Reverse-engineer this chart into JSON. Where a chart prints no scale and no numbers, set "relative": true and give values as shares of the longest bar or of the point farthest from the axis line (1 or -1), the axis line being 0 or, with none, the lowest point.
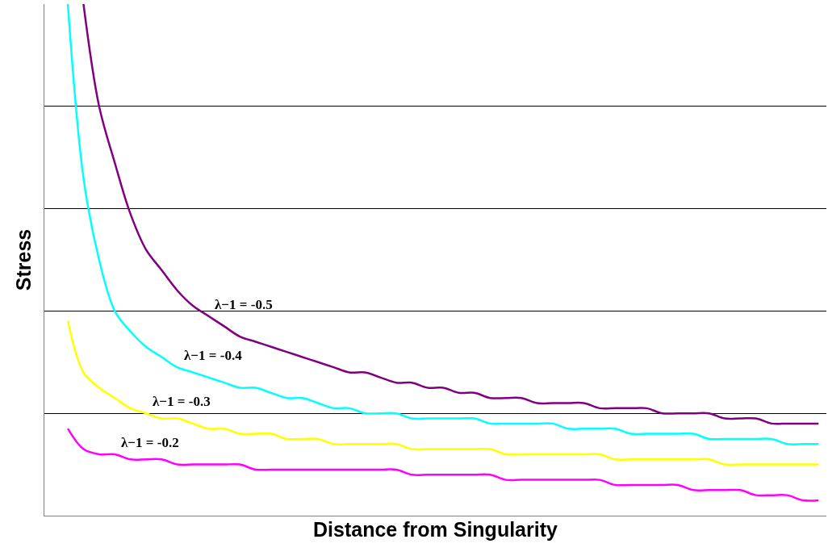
{
  "chart_data": {
    "type": "line",
    "relative": true,
    "xlabel": "Distance from Singularity",
    "ylabel": "Stress",
    "grid": "y",
    "legend": false,
    "marker": "none",
    "line_style": "solid",
    "categories": [
      null,
      null,
      null,
      null,
      null,
      null,
      null,
      null,
      null,
      null,
      null,
      null,
      null,
      null,
      null,
      null,
      null,
      null,
      null,
      null,
      null,
      null,
      null,
      null,
      null,
      null,
      null,
      null,
      null,
      null,
      null,
      null,
      null,
      null,
      null,
      null,
      null,
      null,
      null,
      null,
      null,
      null,
      null,
      null,
      null,
      null,
      null,
      null,
      null,
      null
    ],
    "series": [
      {
        "name": "λ−1 = -0.5",
        "color": "#800080",
        "values": [
          null,
          null,
          1.0,
          0.8,
          0.69,
          0.59,
          0.52,
          0.48,
          0.44,
          0.41,
          0.39,
          0.37,
          0.35,
          0.34,
          0.33,
          0.32,
          0.31,
          0.3,
          0.29,
          0.28,
          0.28,
          0.27,
          0.26,
          0.26,
          0.25,
          0.25,
          0.24,
          0.24,
          0.23,
          0.23,
          0.23,
          0.22,
          0.22,
          0.22,
          0.22,
          0.21,
          0.21,
          0.21,
          0.21,
          0.2,
          0.2,
          0.2,
          0.2,
          0.19,
          0.19,
          0.19,
          0.18,
          0.18,
          0.18,
          0.18
        ]
      },
      {
        "name": "λ−1 = -0.4",
        "color": "#00ffff",
        "values": [
          null,
          1.0,
          0.66,
          0.5,
          0.4,
          0.36,
          0.33,
          0.31,
          0.29,
          0.28,
          0.27,
          0.26,
          0.25,
          0.25,
          0.24,
          0.23,
          0.23,
          0.22,
          0.21,
          0.21,
          0.2,
          0.2,
          0.2,
          0.19,
          0.19,
          0.19,
          0.19,
          0.19,
          0.18,
          0.18,
          0.18,
          0.18,
          0.18,
          0.17,
          0.17,
          0.17,
          0.17,
          0.16,
          0.16,
          0.16,
          0.16,
          0.16,
          0.15,
          0.15,
          0.15,
          0.15,
          0.15,
          0.14,
          0.14,
          0.14
        ]
      },
      {
        "name": "λ−1 = -0.3",
        "color": "#ffff00",
        "values": [
          null,
          0.38,
          0.28,
          0.25,
          0.23,
          0.21,
          0.2,
          0.19,
          0.19,
          0.18,
          0.17,
          0.17,
          0.16,
          0.16,
          0.16,
          0.15,
          0.15,
          0.15,
          0.14,
          0.14,
          0.14,
          0.14,
          0.14,
          0.13,
          0.13,
          0.13,
          0.13,
          0.13,
          0.13,
          0.12,
          0.12,
          0.12,
          0.12,
          0.12,
          0.12,
          0.12,
          0.11,
          0.11,
          0.11,
          0.11,
          0.11,
          0.11,
          0.11,
          0.1,
          0.1,
          0.1,
          0.1,
          0.1,
          0.1,
          0.1
        ]
      },
      {
        "name": "λ−1 = -0.2",
        "color": "#ff00ff",
        "values": [
          null,
          0.17,
          0.13,
          0.12,
          0.12,
          0.11,
          0.11,
          0.11,
          0.1,
          0.1,
          0.1,
          0.1,
          0.1,
          0.09,
          0.09,
          0.09,
          0.09,
          0.09,
          0.09,
          0.09,
          0.09,
          0.09,
          0.09,
          0.08,
          0.08,
          0.08,
          0.08,
          0.08,
          0.08,
          0.07,
          0.07,
          0.07,
          0.07,
          0.07,
          0.07,
          0.07,
          0.06,
          0.06,
          0.06,
          0.06,
          0.06,
          0.05,
          0.05,
          0.05,
          0.05,
          0.04,
          0.04,
          0.04,
          0.03,
          0.03
        ]
      }
    ]
  }
}
